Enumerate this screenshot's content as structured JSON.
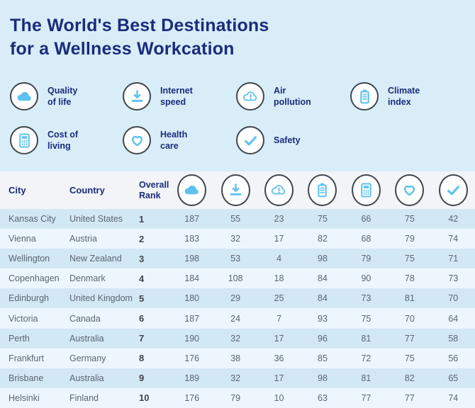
{
  "title": {
    "line1": "The World's Best Destinations",
    "line2": "for a Wellness Workcation"
  },
  "colors": {
    "background": "#d9edf9",
    "title_navy": "#1a2c7b",
    "icon_blue": "#5ec1f0",
    "circle_ring": "#3f464d",
    "header_band": "#f2f4f8",
    "row_odd": "#d3e8f5",
    "row_even": "#edf6fc",
    "cell_text": "#5b6570"
  },
  "legend": [
    {
      "id": "quality-of-life",
      "icon": "cloud-icon",
      "label_line1": "Quality",
      "label_line2": "of life"
    },
    {
      "id": "internet-speed",
      "icon": "download-icon",
      "label_line1": "Internet",
      "label_line2": "speed"
    },
    {
      "id": "air-pollution",
      "icon": "cloud-warning-icon",
      "label_line1": "Air",
      "label_line2": "pollution"
    },
    {
      "id": "climate-index",
      "icon": "battery-icon",
      "label_line1": "Climate",
      "label_line2": "index"
    },
    {
      "id": "cost-of-living",
      "icon": "calculator-icon",
      "label_line1": "Cost of",
      "label_line2": "living"
    },
    {
      "id": "health-care",
      "icon": "heart-icon",
      "label_line1": "Health",
      "label_line2": "care"
    },
    {
      "id": "safety",
      "icon": "check-icon",
      "label_line1": "Safety",
      "label_line2": ""
    }
  ],
  "table": {
    "headers": {
      "city": "City",
      "country": "Country",
      "rank_line1": "Overall",
      "rank_line2": "Rank"
    },
    "icon_columns": [
      {
        "id": "quality-of-life",
        "icon": "cloud-icon"
      },
      {
        "id": "internet-speed",
        "icon": "download-icon"
      },
      {
        "id": "air-pollution",
        "icon": "cloud-warning-icon"
      },
      {
        "id": "climate-index",
        "icon": "battery-icon"
      },
      {
        "id": "cost-of-living",
        "icon": "calculator-icon"
      },
      {
        "id": "health-care",
        "icon": "heart-icon"
      },
      {
        "id": "safety",
        "icon": "check-icon"
      }
    ]
  },
  "chart_data": {
    "type": "table",
    "title": "The World's Best Destinations for a Wellness Workcation",
    "columns": [
      "City",
      "Country",
      "Overall Rank",
      "Quality of life",
      "Internet speed",
      "Air pollution",
      "Climate index",
      "Cost of living",
      "Health care",
      "Safety"
    ],
    "rows": [
      [
        "Kansas City",
        "United States",
        1,
        187,
        55,
        23,
        75,
        66,
        75,
        42
      ],
      [
        "Vienna",
        "Austria",
        2,
        183,
        32,
        17,
        82,
        68,
        79,
        74
      ],
      [
        "Wellington",
        "New Zealand",
        3,
        198,
        53,
        4,
        98,
        79,
        75,
        71
      ],
      [
        "Copenhagen",
        "Denmark",
        4,
        184,
        108,
        18,
        84,
        90,
        78,
        73
      ],
      [
        "Edinburgh",
        "United Kingdom",
        5,
        180,
        29,
        25,
        84,
        73,
        81,
        70
      ],
      [
        "Victoria",
        "Canada",
        6,
        187,
        24,
        7,
        93,
        75,
        70,
        64
      ],
      [
        "Perth",
        "Australia",
        7,
        190,
        32,
        17,
        96,
        81,
        77,
        58
      ],
      [
        "Frankfurt",
        "Germany",
        8,
        176,
        38,
        36,
        85,
        72,
        75,
        56
      ],
      [
        "Brisbane",
        "Australia",
        9,
        189,
        32,
        17,
        98,
        81,
        82,
        65
      ],
      [
        "Helsinki",
        "Finland",
        10,
        176,
        79,
        10,
        63,
        77,
        77,
        74
      ]
    ]
  }
}
